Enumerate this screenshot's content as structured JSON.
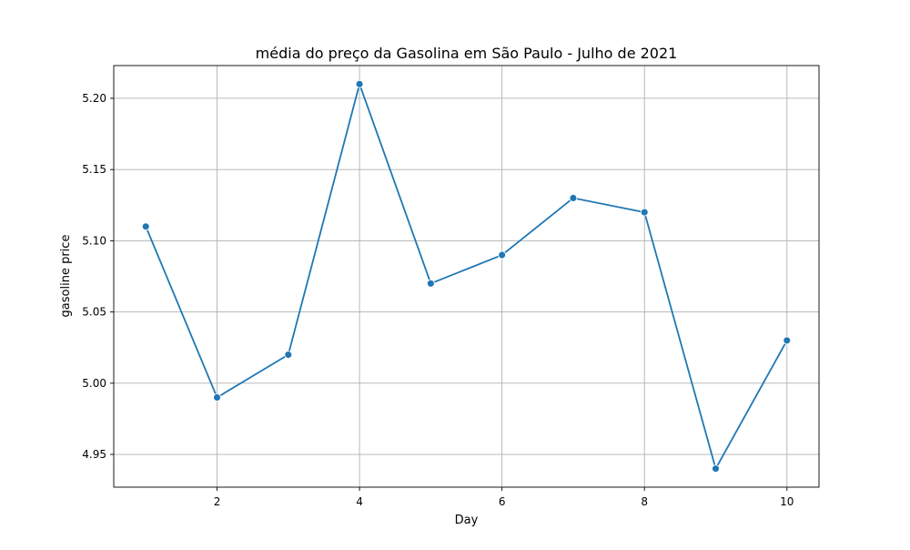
{
  "chart_data": {
    "type": "line",
    "title": "média do preço da Gasolina em São Paulo - Julho de 2021",
    "xlabel": "Day",
    "ylabel": "gasoline price",
    "x": [
      1,
      2,
      3,
      4,
      5,
      6,
      7,
      8,
      9,
      10
    ],
    "series": [
      {
        "values": [
          5.11,
          4.99,
          5.02,
          5.21,
          5.07,
          5.09,
          5.13,
          5.12,
          4.94,
          5.03
        ]
      }
    ],
    "xlim": [
      0.55,
      10.45
    ],
    "ylim": [
      4.927,
      5.223
    ],
    "x_ticks": [
      {
        "value": 2,
        "label": "2"
      },
      {
        "value": 4,
        "label": "4"
      },
      {
        "value": 6,
        "label": "6"
      },
      {
        "value": 8,
        "label": "8"
      },
      {
        "value": 10,
        "label": "10"
      }
    ],
    "y_ticks": [
      {
        "value": 4.95,
        "label": "4.95"
      },
      {
        "value": 5.0,
        "label": "5.00"
      },
      {
        "value": 5.05,
        "label": "5.05"
      },
      {
        "value": 5.1,
        "label": "5.10"
      },
      {
        "value": 5.15,
        "label": "5.15"
      },
      {
        "value": 5.2,
        "label": "5.20"
      }
    ],
    "grid": true,
    "line_color": "#1f77b4",
    "grid_color": "#b0b0b0"
  }
}
